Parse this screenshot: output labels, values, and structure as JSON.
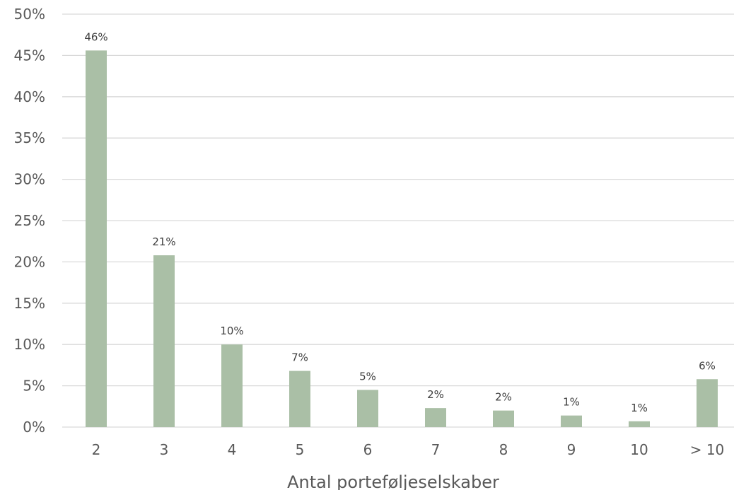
{
  "chart_data": {
    "type": "bar",
    "title": "",
    "xlabel": "Antal porteføljeselskaber",
    "ylabel": "",
    "ylim": [
      0,
      50
    ],
    "yticks": [
      "0%",
      "5%",
      "10%",
      "15%",
      "20%",
      "25%",
      "30%",
      "35%",
      "40%",
      "45%",
      "50%"
    ],
    "categories": [
      "2",
      "3",
      "4",
      "5",
      "6",
      "7",
      "8",
      "9",
      "10",
      "> 10"
    ],
    "values": [
      45.6,
      20.8,
      10.0,
      6.8,
      4.5,
      2.3,
      2.0,
      1.4,
      0.7,
      5.8
    ],
    "data_labels": [
      "46%",
      "21%",
      "10%",
      "7%",
      "5%",
      "2%",
      "2%",
      "1%",
      "1%",
      "6%"
    ],
    "grid": true,
    "legend": "none",
    "bar_color": "#aabfa6"
  }
}
